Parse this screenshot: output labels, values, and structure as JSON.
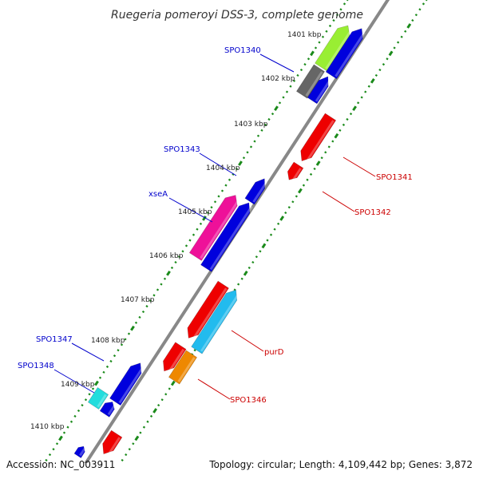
{
  "title": "Ruegeria pomeroyi DSS-3, complete genome",
  "footer": {
    "accession": "Accession: NC_003911",
    "topology": "Topology: circular; Length: 4,109,442 bp; Genes: 3,872"
  },
  "colors": {
    "backbone": "#8a8a8a",
    "tick": "#1a8a1a",
    "forward_label": "#0000cc",
    "reverse_label": "#cc0000"
  },
  "scale_labels": [
    {
      "name": "kbp-1401",
      "text": "1401 kbp"
    },
    {
      "name": "kbp-1402",
      "text": "1402 kbp"
    },
    {
      "name": "kbp-1403",
      "text": "1403 kbp"
    },
    {
      "name": "kbp-1404",
      "text": "1404 kbp"
    },
    {
      "name": "kbp-1405",
      "text": "1405 kbp"
    },
    {
      "name": "kbp-1406",
      "text": "1406 kbp"
    },
    {
      "name": "kbp-1407",
      "text": "1407 kbp"
    },
    {
      "name": "kbp-1408",
      "text": "1408 kbp"
    },
    {
      "name": "kbp-1409",
      "text": "1409 kbp"
    },
    {
      "name": "kbp-1410",
      "text": "1410 kbp"
    }
  ],
  "gene_labels": [
    {
      "name": "label-spo1340",
      "text": "SPO1340",
      "strand": "forward"
    },
    {
      "name": "label-spo1343",
      "text": "SPO1343",
      "strand": "forward"
    },
    {
      "name": "label-xsea",
      "text": "xseA",
      "strand": "forward"
    },
    {
      "name": "label-spo1347",
      "text": "SPO1347",
      "strand": "forward"
    },
    {
      "name": "label-spo1348",
      "text": "SPO1348",
      "strand": "forward"
    },
    {
      "name": "label-spo1341",
      "text": "SPO1341",
      "strand": "reverse"
    },
    {
      "name": "label-spo1342",
      "text": "SPO1342",
      "strand": "reverse"
    },
    {
      "name": "label-purd",
      "text": "purD",
      "strand": "reverse"
    },
    {
      "name": "label-spo1346",
      "text": "SPO1346",
      "strand": "reverse"
    }
  ],
  "features": [
    {
      "name": "gene-lime",
      "color": "#99ee33"
    },
    {
      "name": "gene-blue-top",
      "color": "#0000dd"
    },
    {
      "name": "gene-gray",
      "color": "#666666"
    },
    {
      "name": "gene-blue-small-top",
      "color": "#0000dd"
    },
    {
      "name": "gene-spo1341",
      "color": "#ee0000"
    },
    {
      "name": "gene-spo1342",
      "color": "#ee0000"
    },
    {
      "name": "gene-blue-1404",
      "color": "#0000dd"
    },
    {
      "name": "gene-xsea",
      "color": "#ee1199"
    },
    {
      "name": "gene-blue-1405",
      "color": "#0000dd"
    },
    {
      "name": "gene-purd-red",
      "color": "#ee0000"
    },
    {
      "name": "gene-purd-cyan",
      "color": "#22bbee"
    },
    {
      "name": "gene-red-1408",
      "color": "#ee0000"
    },
    {
      "name": "gene-spo1346",
      "color": "#ee8800"
    },
    {
      "name": "gene-spo1347",
      "color": "#0000dd"
    },
    {
      "name": "gene-spo1348",
      "color": "#22dddd"
    },
    {
      "name": "gene-blue-1409b",
      "color": "#0000dd"
    },
    {
      "name": "gene-blue-1410",
      "color": "#0000dd"
    },
    {
      "name": "gene-red-1410",
      "color": "#ee0000"
    },
    {
      "name": "gene-red-bottom",
      "color": "#ee0000"
    }
  ]
}
